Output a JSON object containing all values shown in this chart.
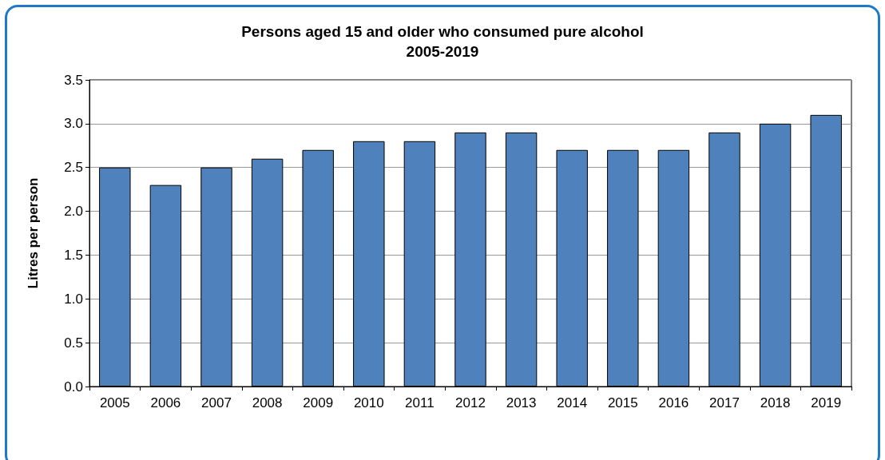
{
  "chart_data": {
    "type": "bar",
    "title": "Persons aged 15 and older who consumed pure alcohol",
    "subtitle": "2005-2019",
    "ylabel": "Litres per person",
    "categories": [
      "2005",
      "2006",
      "2007",
      "2008",
      "2009",
      "2010",
      "2011",
      "2012",
      "2013",
      "2014",
      "2015",
      "2016",
      "2017",
      "2018",
      "2019"
    ],
    "values": [
      2.5,
      2.3,
      2.5,
      2.6,
      2.7,
      2.8,
      2.8,
      2.9,
      2.9,
      2.7,
      2.7,
      2.7,
      2.9,
      3.0,
      3.1
    ],
    "color": "#4f81bd",
    "ylim": [
      0,
      3.5
    ],
    "yticks": [
      {
        "value": 0,
        "label": "0.0"
      },
      0.5,
      {
        "value": 1,
        "label": "1.0"
      },
      1.5,
      {
        "value": 2,
        "label": "2.0"
      },
      2.5,
      {
        "value": 3,
        "label": "3.0"
      },
      3.5
    ],
    "grid": "y"
  }
}
